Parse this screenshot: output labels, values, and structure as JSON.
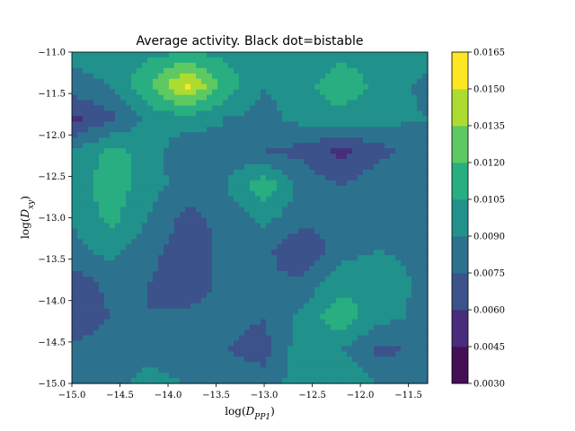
{
  "chart_data": {
    "type": "contour",
    "title": "Average activity. Black dot=bistable",
    "xlabel": "log(D_PP1)",
    "ylabel": "log(D_xy)",
    "xlim": [
      -15.0,
      -11.3
    ],
    "ylim": [
      -15.0,
      -11.0
    ],
    "x_ticks": [
      -15.0,
      -14.5,
      -14.0,
      -13.5,
      -13.0,
      -12.5,
      -12.0,
      -11.5
    ],
    "y_ticks": [
      -11.0,
      -11.5,
      -12.0,
      -12.5,
      -13.0,
      -13.5,
      -14.0,
      -14.5,
      -15.0
    ],
    "x_tick_labels": [
      "−15.0",
      "−14.5",
      "−14.0",
      "−13.5",
      "−13.0",
      "−12.5",
      "−12.0",
      "−11.5"
    ],
    "y_tick_labels": [
      "−11.0",
      "−11.5",
      "−12.0",
      "−12.5",
      "−13.0",
      "−13.5",
      "−14.0",
      "−14.5",
      "−15.0"
    ],
    "colorbar": {
      "levels": [
        0.003,
        0.0045,
        0.006,
        0.0075,
        0.009,
        0.0105,
        0.012,
        0.0135,
        0.015,
        0.0165
      ],
      "level_labels": [
        "0.0030",
        "0.0045",
        "0.0060",
        "0.0075",
        "0.0090",
        "0.0105",
        "0.0120",
        "0.0135",
        "0.0150",
        "0.0165"
      ],
      "colors": [
        "#440f54",
        "#472d7b",
        "#3b528b",
        "#2c728e",
        "#21918c",
        "#28ae80",
        "#5ec962",
        "#addc30",
        "#fde725"
      ]
    },
    "grid": false,
    "x": [
      -15.0,
      -14.6,
      -14.2,
      -13.8,
      -13.4,
      -13.0,
      -12.6,
      -12.2,
      -11.8,
      -11.3
    ],
    "y": [
      -11.0,
      -11.4,
      -11.8,
      -12.2,
      -12.6,
      -13.0,
      -13.4,
      -13.8,
      -14.2,
      -14.6,
      -15.0
    ],
    "z": [
      [
        0.0095,
        0.0095,
        0.01,
        0.0105,
        0.01,
        0.0095,
        0.0095,
        0.01,
        0.01,
        0.01
      ],
      [
        0.0085,
        0.009,
        0.012,
        0.0155,
        0.0115,
        0.009,
        0.01,
        0.0115,
        0.01,
        0.0085
      ],
      [
        0.0055,
        0.007,
        0.0095,
        0.01,
        0.009,
        0.0085,
        0.0095,
        0.01,
        0.0095,
        0.009
      ],
      [
        0.009,
        0.011,
        0.01,
        0.0075,
        0.0085,
        0.0075,
        0.007,
        0.0055,
        0.007,
        0.0085
      ],
      [
        0.0095,
        0.0115,
        0.0095,
        0.0085,
        0.009,
        0.0115,
        0.0085,
        0.0075,
        0.0085,
        0.009
      ],
      [
        0.009,
        0.011,
        0.009,
        0.007,
        0.008,
        0.0095,
        0.008,
        0.008,
        0.0085,
        0.0085
      ],
      [
        0.0085,
        0.0095,
        0.008,
        0.0065,
        0.008,
        0.008,
        0.006,
        0.0085,
        0.009,
        0.0085
      ],
      [
        0.0065,
        0.008,
        0.0075,
        0.0065,
        0.008,
        0.0075,
        0.008,
        0.01,
        0.01,
        0.0085
      ],
      [
        0.006,
        0.0075,
        0.0075,
        0.008,
        0.008,
        0.0075,
        0.0095,
        0.0115,
        0.0095,
        0.0085
      ],
      [
        0.008,
        0.0085,
        0.0085,
        0.008,
        0.0075,
        0.007,
        0.01,
        0.009,
        0.007,
        0.008
      ],
      [
        0.008,
        0.0085,
        0.0095,
        0.009,
        0.0085,
        0.008,
        0.01,
        0.0105,
        0.009,
        0.0085
      ]
    ]
  }
}
